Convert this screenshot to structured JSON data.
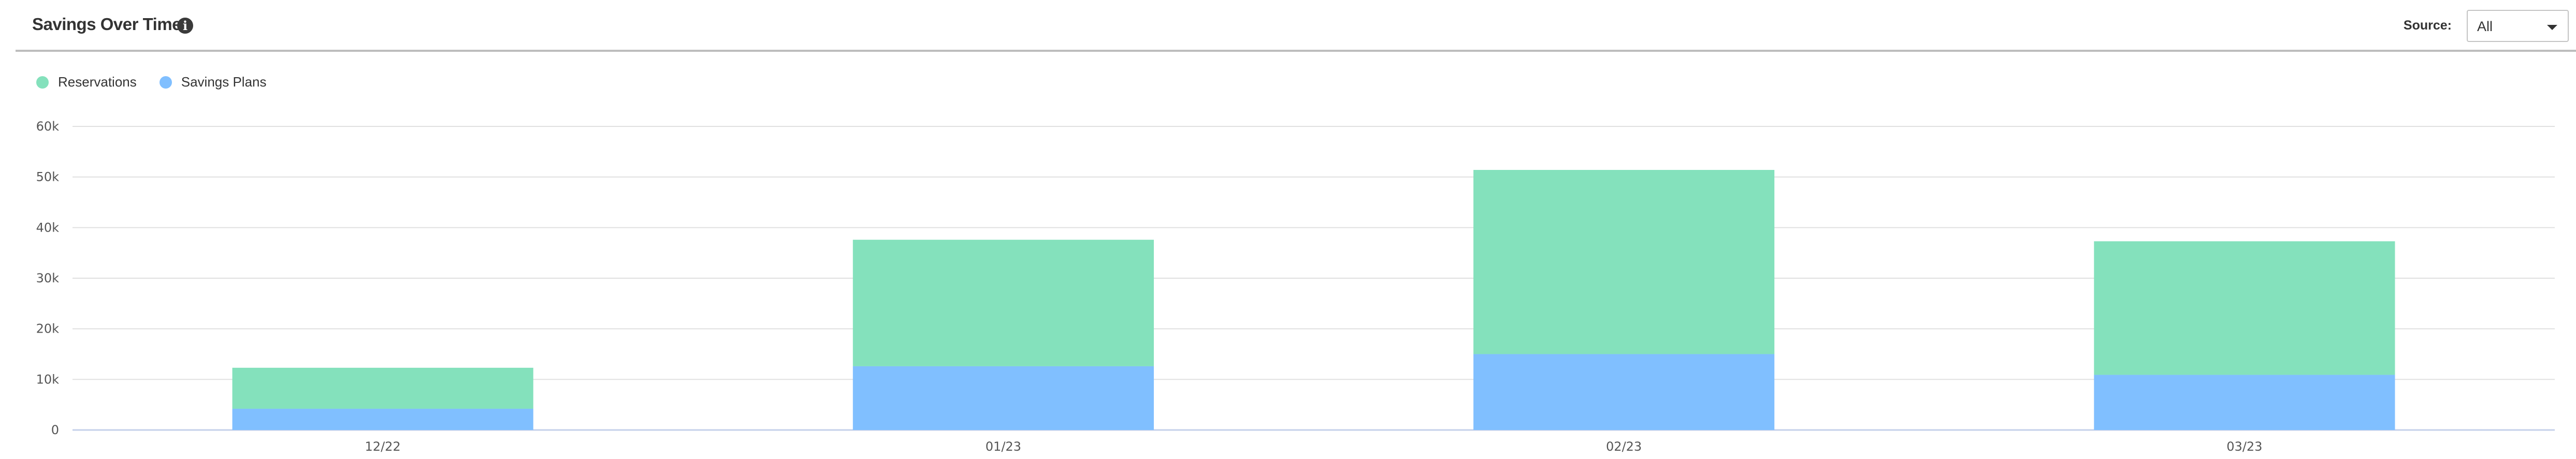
{
  "header": {
    "title": "Savings Over Time",
    "info_icon": "info-icon",
    "source_label": "Source:",
    "source_value": "All"
  },
  "chart_data": {
    "type": "bar",
    "stacked": true,
    "categories": [
      "12/22",
      "01/23",
      "02/23",
      "03/23"
    ],
    "series": [
      {
        "name": "Savings Plans",
        "color": "#80bfff",
        "values": [
          4200,
          12600,
          15000,
          10900
        ]
      },
      {
        "name": "Reservations",
        "color": "#84e1bc",
        "values": [
          8100,
          25000,
          36400,
          26400
        ]
      }
    ],
    "legend": [
      "Reservations",
      "Savings Plans"
    ],
    "legend_colors": [
      "#84e1bc",
      "#80bfff"
    ],
    "legend_placement": "top-left",
    "ylim": [
      0,
      60000
    ],
    "yticks": [
      "0",
      "10k",
      "20k",
      "30k",
      "40k",
      "50k",
      "60k"
    ],
    "grid": true,
    "title": "",
    "xlabel": "",
    "ylabel": ""
  }
}
